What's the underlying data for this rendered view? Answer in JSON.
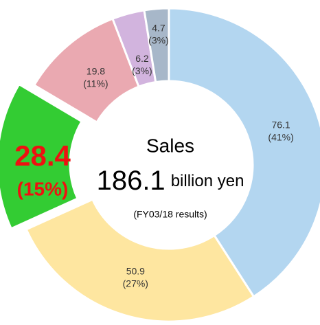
{
  "chart_data": {
    "type": "donut",
    "center_title": "Sales",
    "center_value": "186.1",
    "center_unit": "billion yen",
    "center_note": "(FY03/18 results)",
    "categories": [
      null,
      null,
      null,
      null,
      null,
      null
    ],
    "values": [
      76.1,
      50.9,
      28.4,
      19.8,
      6.2,
      4.7
    ],
    "percent_labels": [
      "(41%)",
      "(27%)",
      "(15%)",
      "(11%)",
      "(3%)",
      "(3%)"
    ],
    "colors": [
      "#b3d6f0",
      "#fee6a0",
      "#33cc33",
      "#eaa9b1",
      "#d2b4de",
      "#a7b7c9"
    ],
    "highlight": 2,
    "highlight_color": "#ee1111"
  }
}
